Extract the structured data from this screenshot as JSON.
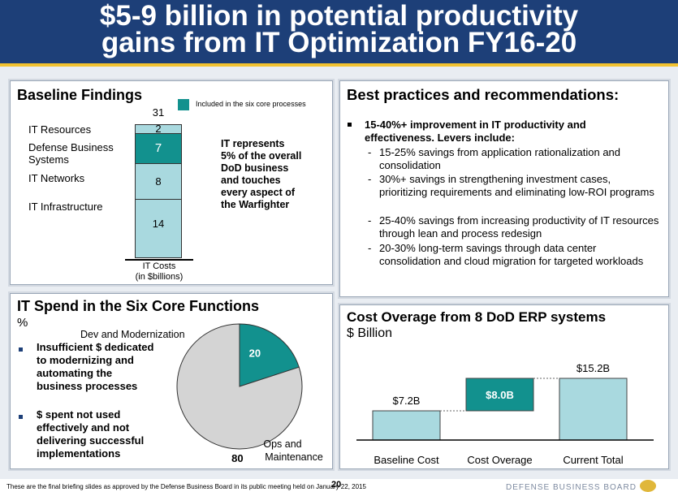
{
  "header": {
    "title_line1": "$5-9 billion in potential productivity",
    "title_line2": "gains from IT Optimization FY16-20"
  },
  "baseline": {
    "title": "Baseline Findings",
    "legend": "Included in the six core processes",
    "total": "31",
    "rows": [
      {
        "label": "IT Resources",
        "value": "2"
      },
      {
        "label": "Defense Business Systems",
        "value": "7"
      },
      {
        "label": "IT Networks",
        "value": "8"
      },
      {
        "label": "IT Infrastructure",
        "value": "14"
      }
    ],
    "axis_label_1": "IT Costs",
    "axis_label_2": "(in $billions)",
    "callout": "IT represents 5% of the overall DoD business and touches every aspect of the Warfighter"
  },
  "best_practices": {
    "title": "Best practices and recommendations:",
    "lead": "15-40%+ improvement in IT productivity and effectiveness.  Levers include:",
    "items": [
      "15-25% savings from application rationalization and consolidation",
      "30%+ savings in strengthening investment cases, prioritizing requirements and eliminating low-ROI programs",
      "25-40% savings from increasing productivity of IT resources through lean and process redesign",
      "20-30% long-term savings through data center consolidation and cloud migration for targeted workloads"
    ]
  },
  "it_spend": {
    "title": "IT Spend in the Six Core Functions",
    "unit": "%",
    "bullets": [
      "Insufficient $ dedicated to modernizing and automating the business processes",
      "$ spent not used effectively and not delivering successful implementations"
    ],
    "slice_labels": {
      "dev": "Dev and Modernization",
      "ops_1": "Ops and",
      "ops_2": "Maintenance"
    }
  },
  "cost_overage": {
    "title": "Cost Overage from 8 DoD ERP systems",
    "unit": "$ Billion"
  },
  "chart_data": [
    {
      "type": "pie",
      "title": "IT Spend in the Six Core Functions",
      "labels": [
        "Dev and Modernization",
        "Ops and Maintenance"
      ],
      "values": [
        20,
        80
      ],
      "colors": [
        "#12918e",
        "#d4d4d4"
      ]
    },
    {
      "type": "bar",
      "title": "Cost Overage from 8 DoD ERP systems",
      "ylabel": "$ Billion",
      "categories": [
        "Baseline Cost",
        "Cost Overage",
        "Current Total"
      ],
      "values": [
        7.2,
        8.0,
        15.2
      ],
      "value_labels": [
        "$7.2B",
        "$8.0B",
        "$15.2B"
      ],
      "colors": [
        "#a9d9df",
        "#12918e",
        "#a9d9df"
      ]
    }
  ],
  "footer": {
    "text": "These are the final briefing slides as approved by the Defense Business Board in its public meeting held on January 22, 2015",
    "page": "20",
    "org": "DEFENSE BUSINESS BOARD"
  },
  "colors": {
    "navy": "#1d3f78",
    "teal": "#12918e",
    "light_teal": "#a9d9df",
    "gold": "#f2c230"
  }
}
